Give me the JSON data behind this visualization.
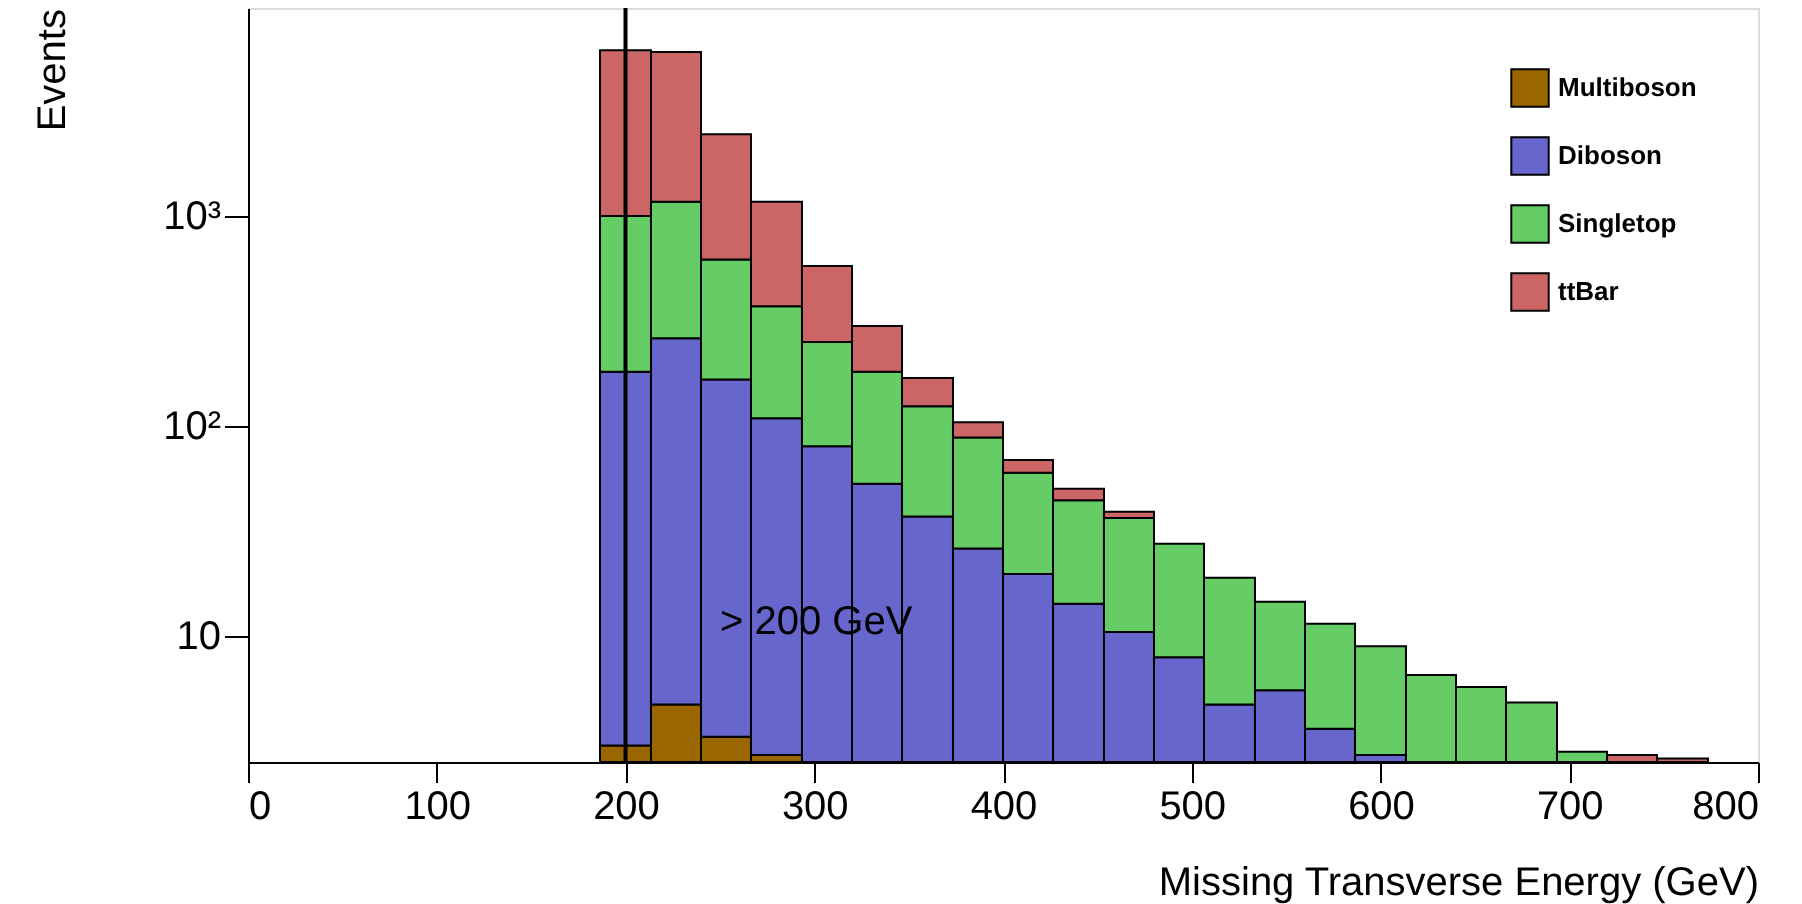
{
  "chart_data": {
    "type": "bar",
    "stacked": true,
    "xlabel": "Missing Transverse Energy (GeV)",
    "ylabel": "Events",
    "log": "y",
    "grid": false,
    "legend": "top right",
    "x": [
      200,
      227,
      253,
      280,
      307,
      333,
      360,
      387,
      413,
      440,
      467,
      493,
      520,
      547,
      573,
      600,
      627,
      653,
      680,
      707,
      733,
      760
    ],
    "series": [
      {
        "name": "Multiboson",
        "color": "#996600",
        "values": [
          3.0,
          4.7,
          3.3,
          2.7,
          null,
          null,
          null,
          null,
          null,
          null,
          null,
          null,
          null,
          null,
          null,
          null,
          null,
          null,
          null,
          null,
          null,
          null
        ]
      },
      {
        "name": "Diboson",
        "color": "#6666cc",
        "values": [
          178,
          257,
          163,
          106,
          80,
          53,
          37,
          26,
          19.7,
          14.2,
          10.4,
          7.9,
          4.7,
          5.5,
          3.6,
          2.7,
          null,
          null,
          null,
          null,
          null,
          null
        ]
      },
      {
        "name": "Singletop",
        "color": "#66cc66",
        "values": [
          819,
          908,
          454,
          263,
          171,
          128,
          87,
          62,
          40,
          30,
          26,
          19.5,
          14.2,
          9,
          7.8,
          6.2,
          6.5,
          5.7,
          4.8,
          2.8,
          null,
          null
        ]
      },
      {
        "name": "ttBar",
        "color": "#cc6666",
        "values": [
          5170,
          4870,
          1830,
          798,
          327,
          118,
          45,
          16,
          9,
          6,
          2.5,
          null,
          null,
          null,
          null,
          null,
          null,
          null,
          null,
          null,
          2.7,
          2.6
        ]
      }
    ],
    "xlim": [
      0,
      800
    ],
    "xticks": [
      0,
      100,
      200,
      300,
      400,
      500,
      600,
      700,
      800
    ],
    "ylim": [
      2.5,
      9800
    ],
    "yticks": [
      {
        "value": 10,
        "label": "10"
      },
      {
        "value": 100,
        "label": "10²"
      },
      {
        "value": 1000,
        "label": "10³"
      }
    ],
    "ref_lines": [
      {
        "axis": "x",
        "value": 200,
        "color": "#000000"
      }
    ],
    "annotations": [
      "> 200 GeV"
    ]
  }
}
